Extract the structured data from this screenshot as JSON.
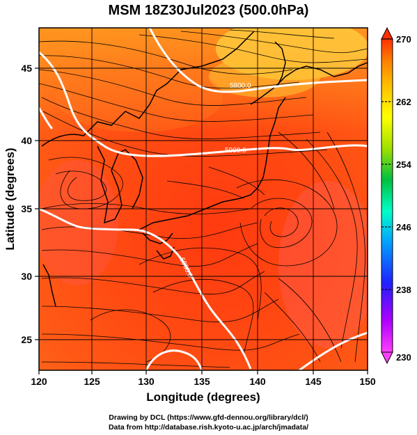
{
  "title": "MSM 18Z30Jul2023 (500.0hPa)",
  "x_axis": {
    "label": "Longitude (degrees)",
    "ticks": [
      "120",
      "125",
      "130",
      "135",
      "140",
      "145",
      "150"
    ],
    "range": [
      120,
      150
    ]
  },
  "y_axis": {
    "label": "Latitude  (degrees)",
    "ticks": [
      "25",
      "30",
      "35",
      "40",
      "45"
    ],
    "range": [
      22.4,
      47.6
    ]
  },
  "colorbar": {
    "ticks": [
      "270",
      "262",
      "254",
      "246",
      "238",
      "230"
    ],
    "range": [
      230,
      270
    ],
    "colors": [
      "#ff3fff",
      "#b000ff",
      "#2020ff",
      "#00a0ff",
      "#00ffc8",
      "#00c040",
      "#a0e000",
      "#ffff00",
      "#ffc000",
      "#ff8000",
      "#ff3000"
    ]
  },
  "contours": {
    "labels": [
      "5800.0",
      "5900.0",
      "5900.0"
    ],
    "color": "#ffffff"
  },
  "credits": {
    "line1": "Drawing by DCL (https://www.gfd-dennou.org/library/dcl/)",
    "line2": "Data from http://database.rish.kyoto-u.ac.jp/arch/jmadata/"
  }
}
